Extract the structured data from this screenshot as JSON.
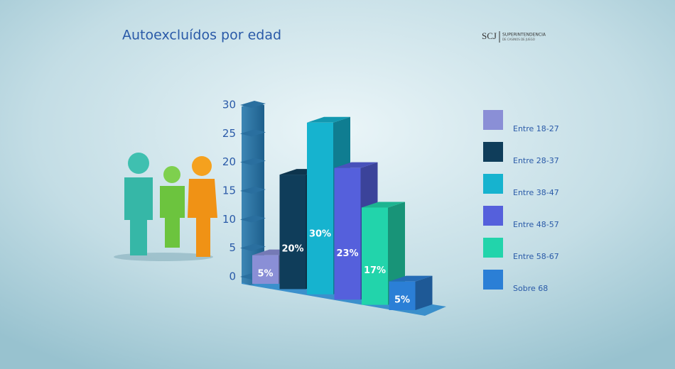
{
  "chart_data": {
    "type": "bar3d",
    "title": "Autoexcluídos por edad",
    "categories": [
      "Entre 18-27",
      "Entre 28-37",
      "Entre 38-47",
      "Entre 48-57",
      "Entre 58-67",
      "Sobre 68"
    ],
    "values": [
      5,
      20,
      30,
      23,
      17,
      5
    ],
    "value_labels": [
      "5%",
      "20%",
      "30%",
      "23%",
      "17%",
      "5%"
    ],
    "colors": [
      "#8a8fd6",
      "#0f3d5a",
      "#16b3cf",
      "#5560dc",
      "#22d4ab",
      "#2b7fd6"
    ],
    "ylim": [
      0,
      30
    ],
    "yticks": [
      0,
      5,
      10,
      15,
      20,
      25,
      30
    ],
    "legend": "right"
  },
  "logo": {
    "mark": "SCJ",
    "text": "SUPERINTENDENCIA",
    "subtext": "DE CASINOS DE JUEGO"
  }
}
